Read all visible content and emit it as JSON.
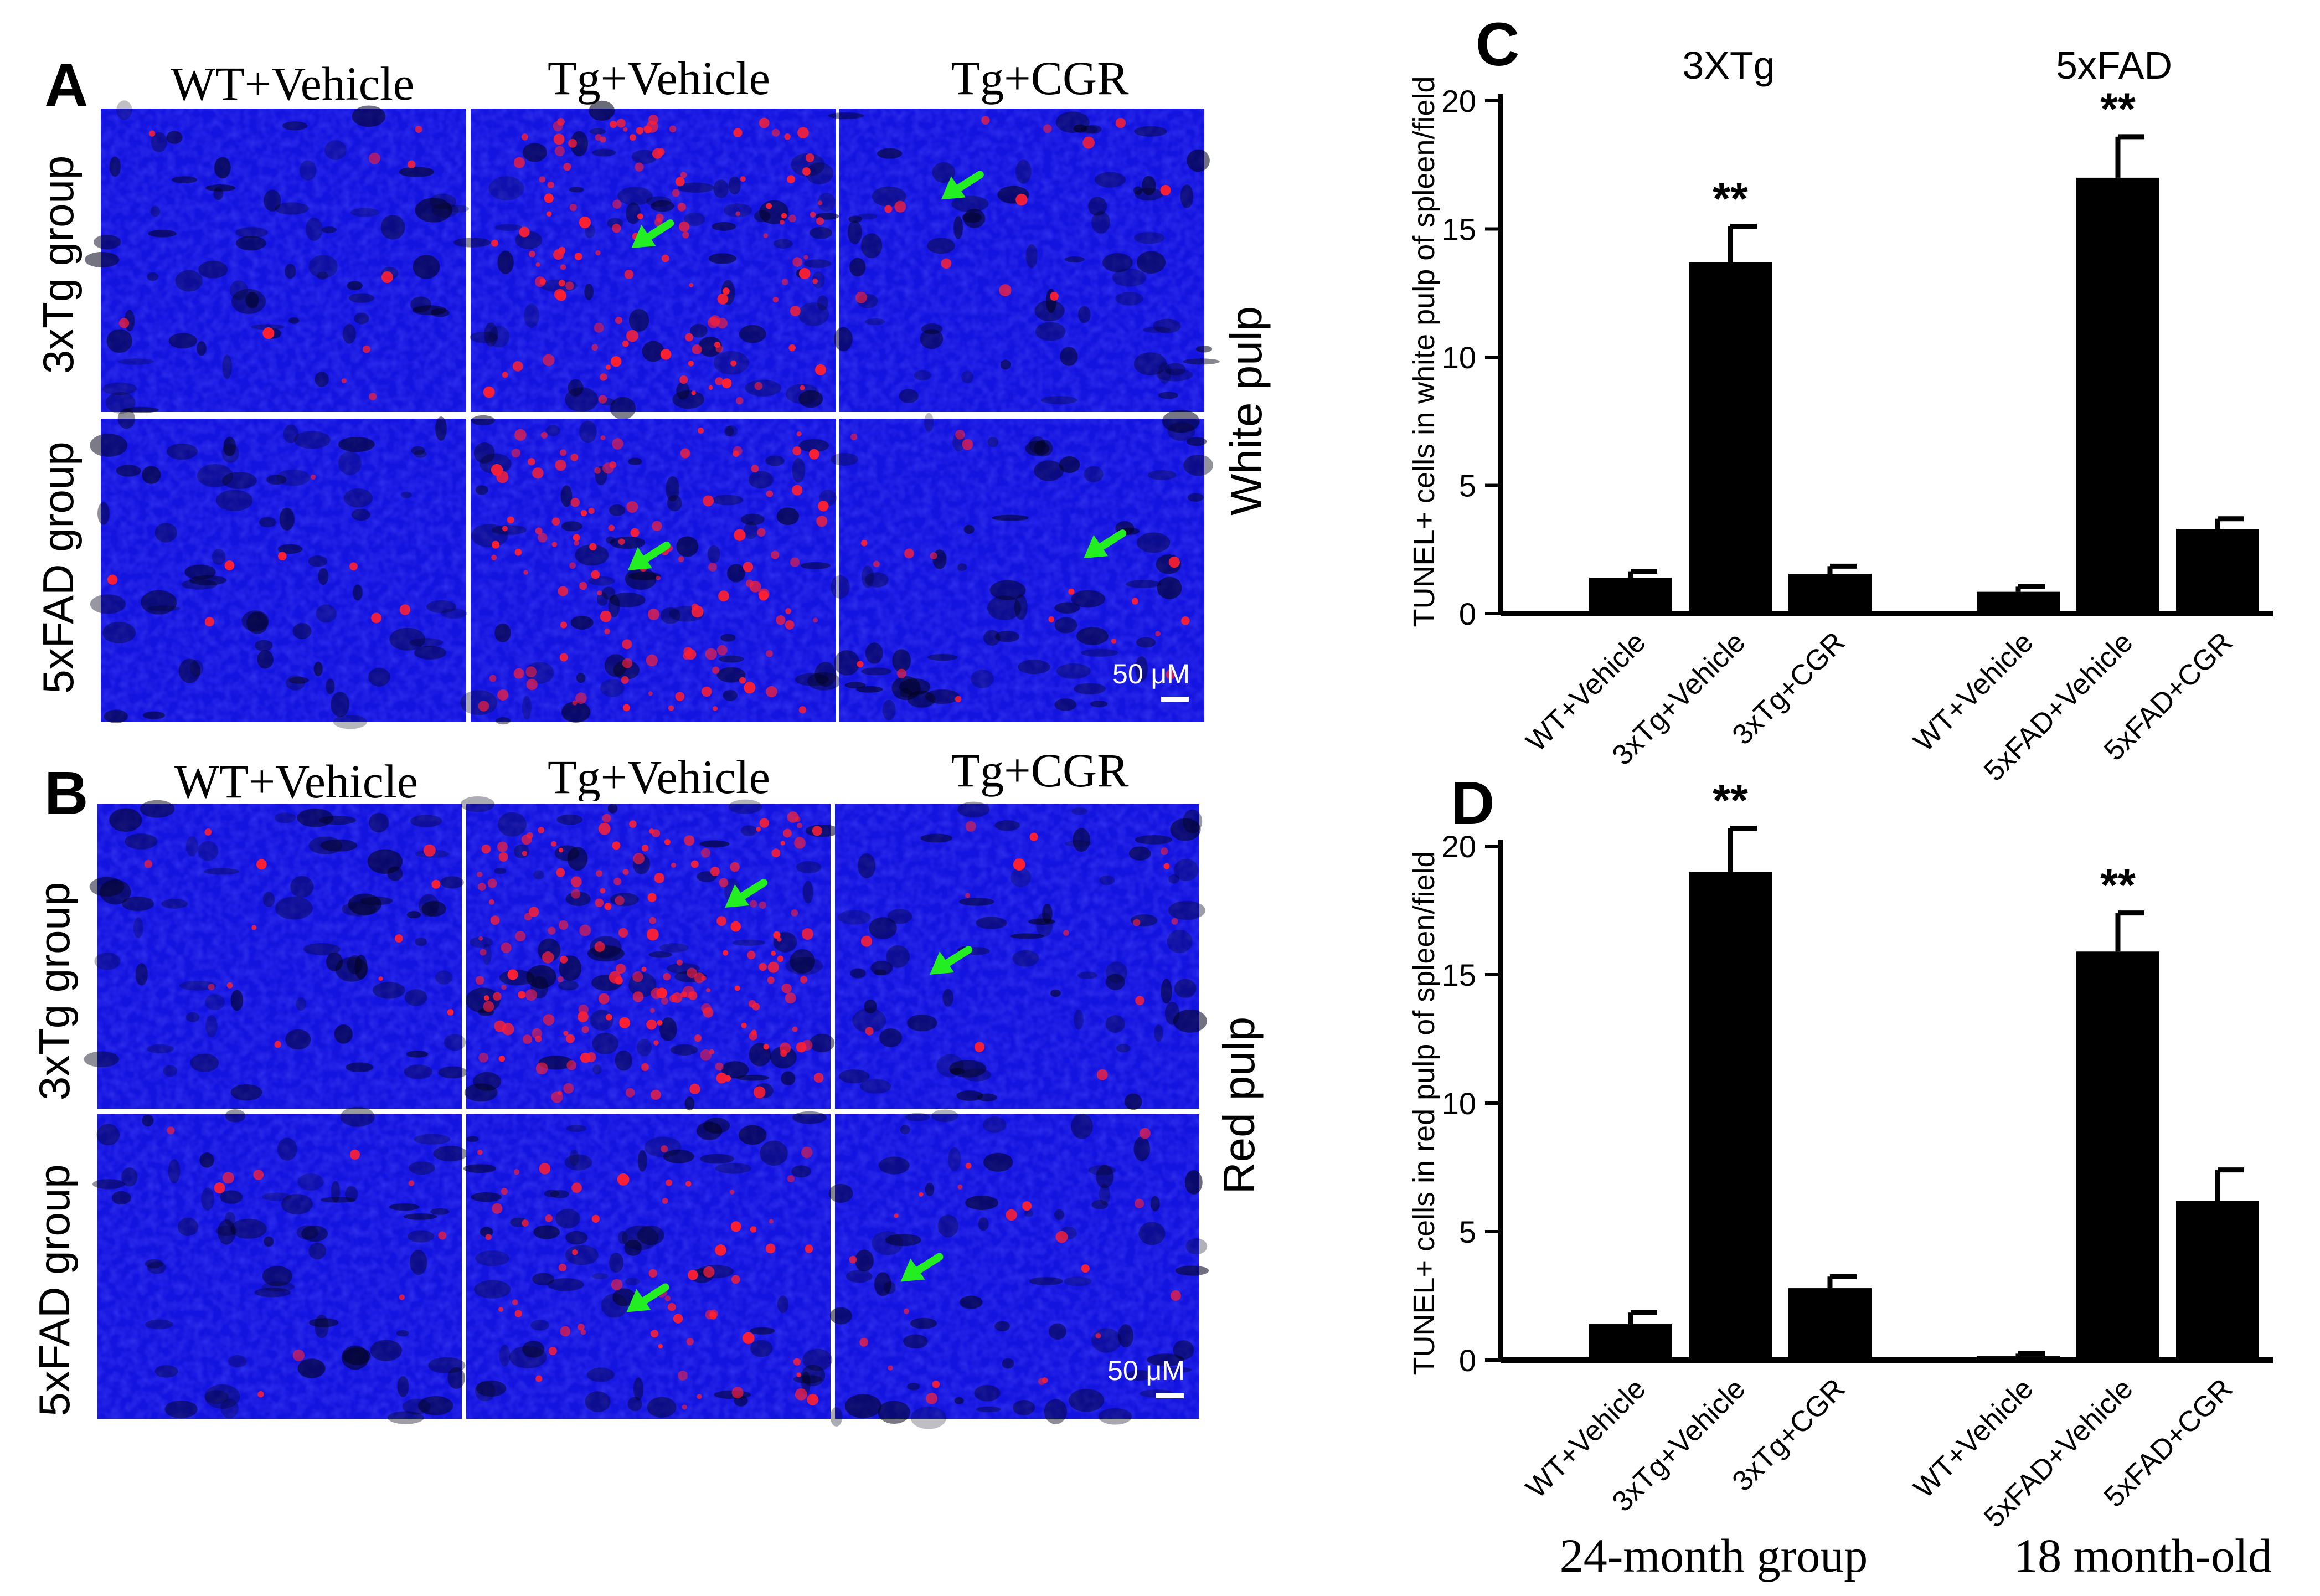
{
  "panel_letters": {
    "a": "A",
    "b": "B",
    "c": "C",
    "d": "D"
  },
  "micrographs": {
    "columns_a": [
      "WT+Vehicle",
      "Tg+Vehicle",
      "Tg+CGR"
    ],
    "columns_b": [
      "WT+Vehicle",
      "Tg+Vehicle",
      "Tg+CGR"
    ],
    "rows": [
      "3xTg group",
      "5xFAD group"
    ],
    "side_label_a": "White pulp",
    "side_label_b": "Red pulp",
    "scale_bar": "50 μM",
    "colors": {
      "nuclei": "#1414e0",
      "tunel": "#ff2030",
      "arrow": "#22ee22"
    }
  },
  "chart_data": [
    {
      "panel": "C",
      "type": "bar",
      "group_labels": [
        "3XTg",
        "5xFAD"
      ],
      "categories": [
        "WT+Vehicle",
        "3xTg+Vehicle",
        "3xTg+CGR",
        "WT+Vehicle",
        "5xFAD+Vehicle",
        "5xFAD+CGR"
      ],
      "values": [
        1.4,
        13.7,
        1.55,
        0.85,
        17.0,
        3.3
      ],
      "errors": [
        0.25,
        1.4,
        0.3,
        0.2,
        1.6,
        0.4
      ],
      "significance": [
        "",
        "**",
        "",
        "",
        "**",
        ""
      ],
      "ylabel": "TUNEL+ cells in white pulp of spleen/field",
      "ylim": [
        0,
        20
      ],
      "yticks": [
        0,
        5,
        10,
        15,
        20
      ],
      "bar_color": "#000000"
    },
    {
      "panel": "D",
      "type": "bar",
      "categories": [
        "WT+Vehicle",
        "3xTg+Vehicle",
        "3xTg+CGR",
        "WT+Vehicle",
        "5xFAD+Vehicle",
        "5xFAD+CGR"
      ],
      "values": [
        1.4,
        19.0,
        2.8,
        0.15,
        15.9,
        6.2
      ],
      "errors": [
        0.45,
        1.7,
        0.45,
        0.1,
        1.5,
        1.2
      ],
      "significance": [
        "",
        "**",
        "",
        "",
        "**",
        ""
      ],
      "ylabel": "TUNEL+ cells in red pulp of spleen/field",
      "ylim": [
        0,
        20
      ],
      "yticks": [
        0,
        5,
        10,
        15,
        20
      ],
      "group_captions": [
        "24-month group",
        "18 month-old"
      ],
      "bar_color": "#000000"
    }
  ]
}
